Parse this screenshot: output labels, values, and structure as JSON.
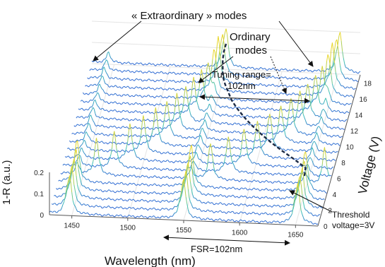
{
  "chart_data": {
    "type": "line",
    "title": "",
    "xlabel": "Wavelength (nm)",
    "ylabel": "Voltage (V)",
    "zlabel": "1-R (a.u.)",
    "x_ticks": [
      "1450",
      "1500",
      "1550",
      "1600",
      "1650"
    ],
    "xlim": [
      1430,
      1670
    ],
    "voltage_ticks": [
      "0",
      "2",
      "4",
      "6",
      "8",
      "10",
      "12",
      "14",
      "16",
      "18"
    ],
    "voltage_range": [
      0,
      19
    ],
    "z_ticks": [
      "0",
      "0.1",
      "0.2"
    ],
    "zlim": [
      0,
      0.2
    ],
    "voltages": [
      0,
      1,
      2,
      3,
      4,
      5,
      6,
      7,
      8,
      9,
      10,
      11,
      12,
      13,
      14,
      15,
      16,
      17,
      18,
      19
    ],
    "extraordinary_peaks_nm": [
      [
        1448,
        1550,
        1652
      ],
      [
        1448,
        1550,
        1652
      ],
      [
        1448,
        1550,
        1652
      ],
      [
        1448,
        1550,
        1652
      ],
      [
        1447,
        1549,
        1651
      ],
      [
        1462,
        1564,
        1666
      ],
      [
        1476,
        1578,
        1680
      ],
      [
        1488,
        1590,
        1692
      ],
      [
        1498,
        1600,
        1702
      ],
      [
        1507,
        1609,
        1711
      ],
      [
        1515,
        1617,
        1719
      ],
      [
        1522,
        1624,
        1726
      ],
      [
        1528,
        1630,
        1732
      ],
      [
        1533,
        1635,
        1737
      ],
      [
        1538,
        1640,
        1742
      ],
      [
        1542,
        1644,
        1746
      ],
      [
        1545,
        1647,
        1749
      ],
      [
        1547,
        1649,
        1751
      ],
      [
        1549,
        1651,
        1753
      ],
      [
        1550,
        1652,
        1754
      ]
    ],
    "ordinary_peaks_nm": [
      1445,
      1547,
      1649
    ],
    "tuning_curve": {
      "voltages": [
        3,
        4,
        5,
        6,
        7,
        8,
        9,
        10,
        11,
        12,
        13,
        14,
        15,
        16,
        17,
        18,
        19
      ],
      "wavelengths_nm": [
        1652,
        1651,
        1639,
        1626,
        1614,
        1603,
        1593,
        1584,
        1576,
        1569,
        1564,
        1559,
        1555,
        1553,
        1551,
        1550,
        1550
      ]
    }
  },
  "annotations": {
    "extraordinary_label": "« Extraordinary » modes",
    "ordinary_line1": "Ordinary",
    "ordinary_line2": "modes",
    "tuning_line1": "Tuning range=",
    "tuning_line2": "102nm",
    "fsr_label": "FSR=102nm",
    "threshold_line1": "Threshold",
    "threshold_line2": "voltage=3V"
  },
  "colors": {
    "trace_low": "#2a5bd7",
    "trace_mid": "#3fc0b8",
    "trace_high": "#e8d62a",
    "axis": "#555555",
    "grid": "#e4e4e4",
    "tuning_curve": "#1b2a44",
    "arrow": "#111111"
  }
}
